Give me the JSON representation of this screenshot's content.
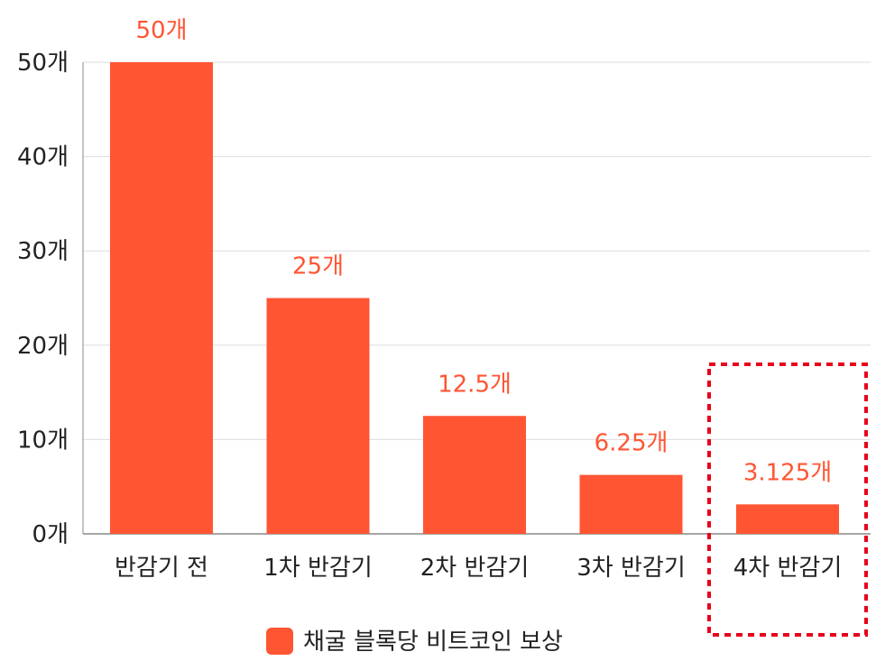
{
  "chart_data": {
    "type": "bar",
    "title": "",
    "xlabel": "",
    "ylabel": "",
    "categories": [
      "반감기 전",
      "1차 반감기",
      "2차 반감기",
      "3차 반감기",
      "4차 반감기"
    ],
    "values": [
      50,
      25,
      12.5,
      6.25,
      3.125
    ],
    "data_labels": [
      "50개",
      "25개",
      "12.5개",
      "6.25개",
      "3.125개"
    ],
    "y_ticks": [
      0,
      10,
      20,
      30,
      40,
      50
    ],
    "y_tick_labels": [
      "0개",
      "10개",
      "20개",
      "30개",
      "40개",
      "50개"
    ],
    "ylim": [
      0,
      50
    ],
    "grid": true,
    "legend": {
      "position": "bottom",
      "entries": [
        "채굴 블록당 비트코인 보상"
      ]
    },
    "highlight": {
      "category": "4차 반감기",
      "style": "red dashed box"
    },
    "series": [
      {
        "name": "채굴 블록당 비트코인 보상",
        "values": [
          50,
          25,
          12.5,
          6.25,
          3.125
        ]
      }
    ],
    "colors": {
      "bar": "#FF5533",
      "data_label": "#FF5533",
      "highlight": "#E8001C",
      "grid": "#DDDDDD",
      "axis": "#888888"
    }
  }
}
